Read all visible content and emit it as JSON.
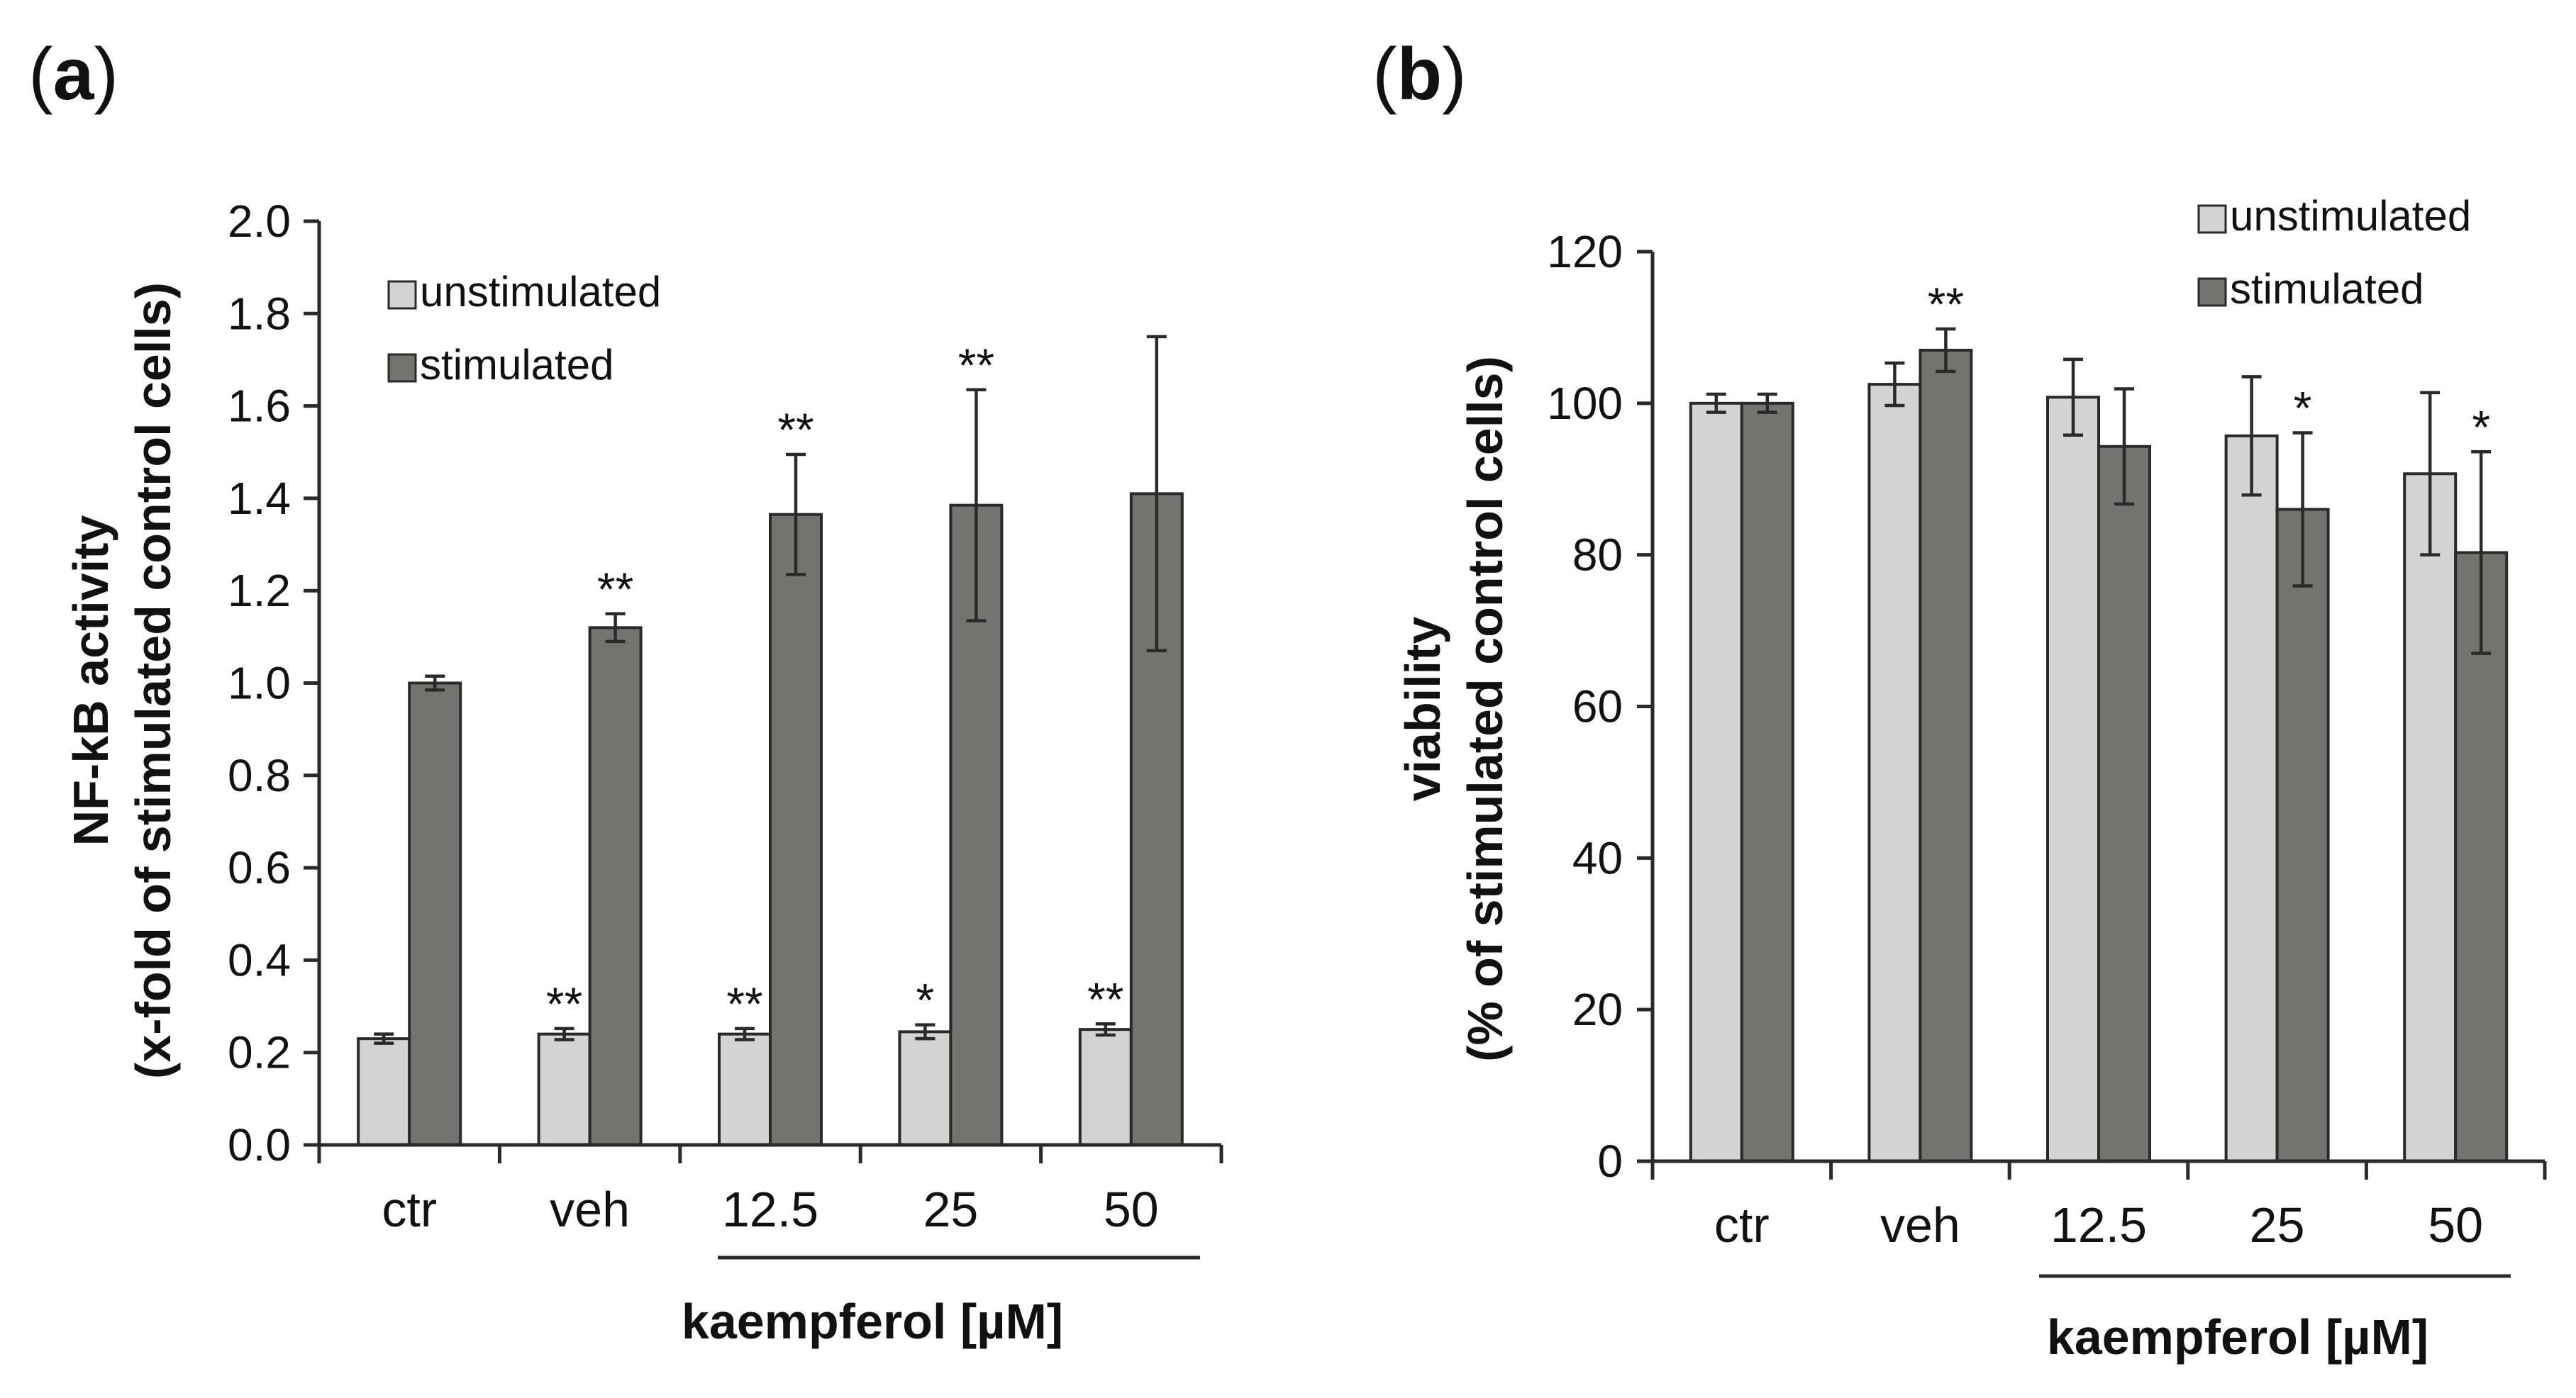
{
  "chart_data": [
    {
      "panel_label": "a",
      "type": "bar",
      "categories": [
        "ctr",
        "veh",
        "12.5",
        "25",
        "50"
      ],
      "group_label": "kaempferol [µM]",
      "ylabel_line1": "NF-kB activity",
      "ylabel_line2": "(x-fold of stimulated control cells)",
      "ylim": [
        0,
        2.0
      ],
      "yticks": [
        "0.0",
        "0.2",
        "0.4",
        "0.6",
        "0.8",
        "1.0",
        "1.2",
        "1.4",
        "1.6",
        "1.8",
        "2.0"
      ],
      "legend_position": "top-left",
      "grid": false,
      "series": [
        {
          "name": "unstimulated",
          "color": "#d5d2d2",
          "values": [
            0.23,
            0.24,
            0.24,
            0.245,
            0.25
          ],
          "errors": [
            0.01,
            0.012,
            0.012,
            0.015,
            0.012
          ],
          "significance": [
            "",
            "**",
            "**",
            "*",
            "**"
          ]
        },
        {
          "name": "stimulated",
          "color": "#737370",
          "values": [
            1.0,
            1.12,
            1.365,
            1.385,
            1.41
          ],
          "errors": [
            0.015,
            0.03,
            0.13,
            0.25,
            0.34
          ],
          "significance": [
            "",
            "**",
            "**",
            "**",
            ""
          ]
        }
      ]
    },
    {
      "panel_label": "b",
      "type": "bar",
      "categories": [
        "ctr",
        "veh",
        "12.5",
        "25",
        "50"
      ],
      "group_label": "kaempferol [µM]",
      "ylabel_line1": "viability",
      "ylabel_line2": "(% of stimulated control cells)",
      "ylim": [
        0,
        120
      ],
      "yticks": [
        "0",
        "20",
        "40",
        "60",
        "80",
        "100",
        "120"
      ],
      "legend_position": "top-right",
      "grid": false,
      "series": [
        {
          "name": "unstimulated",
          "color": "#d5d2d2",
          "values": [
            100,
            102.5,
            100.8,
            95.7,
            90.7
          ],
          "errors": [
            1.2,
            2.8,
            5.0,
            7.8,
            10.7
          ],
          "significance": [
            "",
            "",
            "",
            "",
            ""
          ]
        },
        {
          "name": "stimulated",
          "color": "#737370",
          "values": [
            100,
            107,
            94.3,
            86,
            80.3
          ],
          "errors": [
            1.2,
            2.8,
            7.6,
            10.1,
            13.3
          ],
          "significance": [
            "",
            "**",
            "",
            "*",
            "*"
          ]
        }
      ]
    }
  ]
}
